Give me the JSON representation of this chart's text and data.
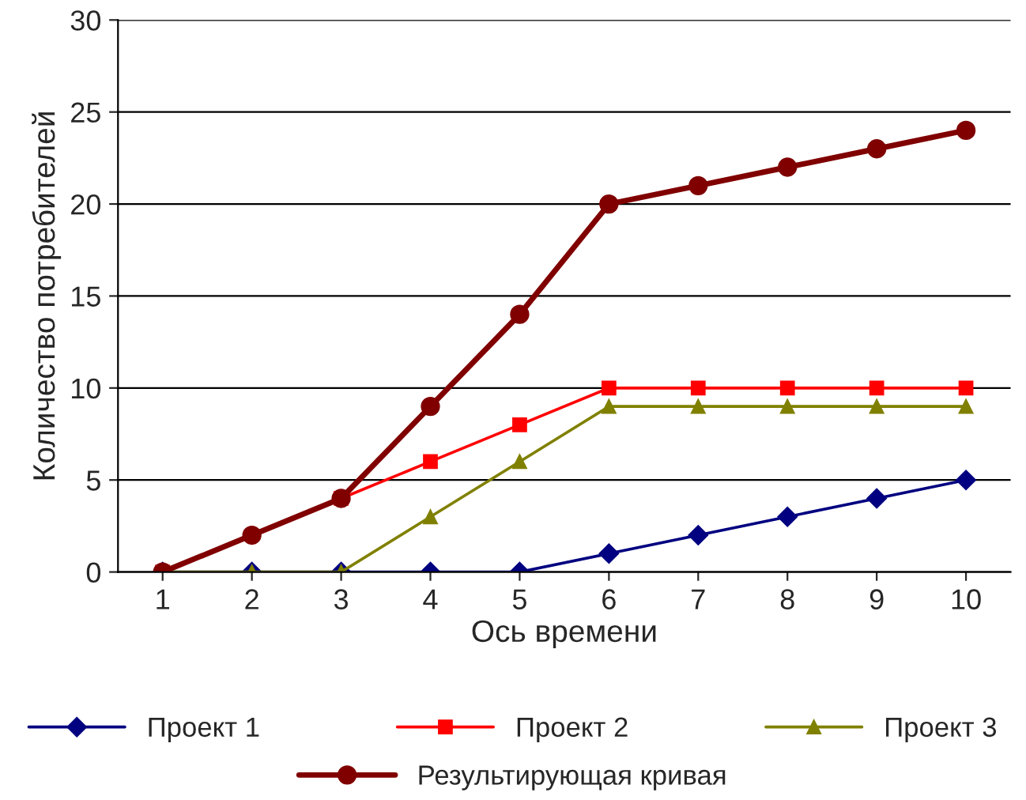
{
  "chart_data": {
    "type": "line",
    "xlabel": "Ось времени",
    "ylabel": "Количество потребителей",
    "categories": [
      "1",
      "2",
      "3",
      "4",
      "5",
      "6",
      "7",
      "8",
      "9",
      "10"
    ],
    "series": [
      {
        "name": "Проект 1",
        "color": "#000080",
        "marker": "diamond",
        "values": [
          0,
          0,
          0,
          0,
          0,
          1,
          2,
          3,
          4,
          5
        ]
      },
      {
        "name": "Проект 2",
        "color": "#ff0000",
        "marker": "square",
        "values": [
          0,
          null,
          4,
          6,
          8,
          10,
          10,
          10,
          10,
          10
        ]
      },
      {
        "name": "Проект 3",
        "color": "#808000",
        "marker": "triangle",
        "values": [
          0,
          0,
          0,
          3,
          6,
          9,
          9,
          9,
          9,
          9
        ]
      },
      {
        "name": "Результирующая кривая",
        "color": "#800000",
        "marker": "circle",
        "values": [
          0,
          2,
          4,
          9,
          14,
          20,
          21,
          22,
          23,
          24
        ]
      }
    ],
    "ylim": [
      0,
      30
    ],
    "yticks": [
      0,
      5,
      10,
      15,
      20,
      25,
      30
    ],
    "grid": "y",
    "legend": "bottom",
    "line_style": "solid"
  }
}
